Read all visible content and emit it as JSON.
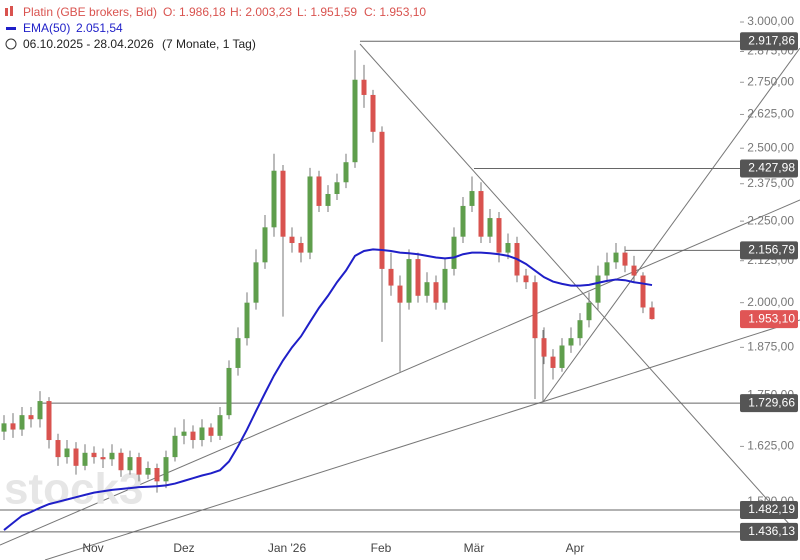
{
  "chart_data": {
    "type": "candlestick",
    "log_scale": true,
    "title": "Platin (GBE brokers, Bid)",
    "ohlc_labels": [
      "O: 1.986,18",
      "H: 2.003,23",
      "L: 1.951,59",
      "C: 1.953,10"
    ],
    "ema_name": "EMA(50)",
    "ema_label": "2.051,54",
    "date_range": "06.10.2025 - 28.04.2026",
    "range_note": "(7 Monate, 1 Tag)",
    "watermark": "stock3",
    "x_labels": [
      "Nov",
      "Dez",
      "Jan '26",
      "Feb",
      "Mär",
      "Apr"
    ],
    "up_color": "#5f9e4c",
    "down_color": "#d9534f",
    "ema_color": "#1f1fc8",
    "open": [
      1660,
      1680,
      1665,
      1700,
      1690,
      1735,
      1640,
      1600,
      1620,
      1580,
      1610,
      1600,
      1595,
      1610,
      1570,
      1600,
      1560,
      1575,
      1545,
      1600,
      1650,
      1660,
      1640,
      1670,
      1650,
      1700,
      1820,
      1900,
      2000,
      2120,
      2230,
      2420,
      2200,
      2180,
      2150,
      2400,
      2300,
      2340,
      2380,
      2450,
      2760,
      2700,
      2560,
      2100,
      2050,
      2000,
      2130,
      2020,
      2060,
      2000,
      2100,
      2200,
      2300,
      2350,
      2200,
      2260,
      2150,
      2180,
      2080,
      2060,
      1900,
      1850,
      1820,
      1880,
      1900,
      1950,
      2000,
      2080,
      2120,
      2150,
      2110,
      2080,
      1986.18
    ],
    "high": [
      1700,
      1705,
      1720,
      1720,
      1760,
      1745,
      1655,
      1640,
      1635,
      1630,
      1625,
      1620,
      1630,
      1620,
      1615,
      1610,
      1590,
      1585,
      1615,
      1670,
      1690,
      1675,
      1690,
      1680,
      1720,
      1840,
      1930,
      2030,
      2160,
      2270,
      2480,
      2440,
      2230,
      2200,
      2430,
      2420,
      2370,
      2410,
      2480,
      2880,
      2820,
      2720,
      2580,
      2150,
      2080,
      2160,
      2150,
      2090,
      2080,
      2130,
      2230,
      2330,
      2400,
      2380,
      2290,
      2280,
      2210,
      2200,
      2100,
      2080,
      1930,
      1870,
      1900,
      1930,
      1970,
      2030,
      2110,
      2150,
      2180,
      2170,
      2140,
      2090,
      2003.23
    ],
    "low": [
      1640,
      1645,
      1650,
      1670,
      1670,
      1620,
      1580,
      1585,
      1560,
      1570,
      1585,
      1575,
      1580,
      1555,
      1560,
      1545,
      1550,
      1520,
      1530,
      1590,
      1630,
      1620,
      1625,
      1635,
      1640,
      1690,
      1800,
      1880,
      1980,
      2100,
      2200,
      1960,
      2150,
      2120,
      2130,
      2280,
      2280,
      2320,
      2360,
      2430,
      2650,
      2520,
      1890,
      2020,
      1810,
      1980,
      2000,
      2000,
      1980,
      1980,
      2080,
      2180,
      2280,
      2180,
      2180,
      2120,
      2130,
      2060,
      2040,
      1740,
      1830,
      1790,
      1810,
      1860,
      1880,
      1930,
      1980,
      2060,
      2100,
      2090,
      2060,
      1970,
      1951.59
    ],
    "close": [
      1680,
      1665,
      1700,
      1690,
      1735,
      1640,
      1600,
      1620,
      1580,
      1610,
      1600,
      1595,
      1610,
      1570,
      1600,
      1560,
      1575,
      1545,
      1600,
      1650,
      1660,
      1640,
      1670,
      1650,
      1700,
      1820,
      1900,
      2000,
      2120,
      2230,
      2420,
      2200,
      2180,
      2150,
      2400,
      2300,
      2340,
      2380,
      2450,
      2760,
      2700,
      2560,
      2100,
      2050,
      2000,
      2130,
      2020,
      2060,
      2000,
      2100,
      2200,
      2300,
      2350,
      2200,
      2260,
      2150,
      2180,
      2080,
      2060,
      1900,
      1850,
      1820,
      1880,
      1900,
      1950,
      2000,
      2080,
      2120,
      2150,
      2110,
      2080,
      1986.18,
      1953.1
    ],
    "ema": [
      1440,
      1455,
      1470,
      1478,
      1487,
      1495,
      1500,
      1505,
      1510,
      1515,
      1520,
      1523,
      1526,
      1528,
      1530,
      1532,
      1533,
      1534,
      1536,
      1540,
      1546,
      1552,
      1558,
      1563,
      1570,
      1590,
      1625,
      1665,
      1710,
      1755,
      1800,
      1840,
      1875,
      1905,
      1945,
      1985,
      2020,
      2060,
      2095,
      2140,
      2155,
      2160,
      2158,
      2155,
      2150,
      2148,
      2145,
      2140,
      2135,
      2132,
      2135,
      2145,
      2150,
      2150,
      2148,
      2145,
      2140,
      2130,
      2115,
      2095,
      2075,
      2062,
      2055,
      2050,
      2050,
      2052,
      2058,
      2064,
      2068,
      2066,
      2060,
      2056,
      2051.54
    ],
    "ylim": [
      1379,
      3097
    ],
    "yticks": [
      {
        "value": 3000,
        "label": "3.000,00"
      },
      {
        "value": 2875,
        "label": "2.875,00"
      },
      {
        "value": 2750,
        "label": "2.750,00"
      },
      {
        "value": 2625,
        "label": "2.625,00"
      },
      {
        "value": 2500,
        "label": "2.500,00"
      },
      {
        "value": 2375,
        "label": "2.375,00"
      },
      {
        "value": 2250,
        "label": "2.250,00"
      },
      {
        "value": 2125,
        "label": "2.125,00"
      },
      {
        "value": 2000,
        "label": "2.000,00"
      },
      {
        "value": 1875,
        "label": "1.875,00"
      },
      {
        "value": 1750,
        "label": "1.750,00"
      },
      {
        "value": 1625,
        "label": "1.625,00"
      },
      {
        "value": 1500,
        "label": "1.500,00"
      }
    ],
    "levels": {
      "values": [
        2917.86,
        2427.98,
        2156.79,
        1729.66,
        1482.19,
        1436.13
      ],
      "value_labels": [
        "2.917,86",
        "2.427,98",
        "2.156,79",
        "1.729,66",
        "1.482,19",
        "1.436,13"
      ]
    },
    "last_price": 1953.1,
    "last_price_label": "1.953,10"
  }
}
